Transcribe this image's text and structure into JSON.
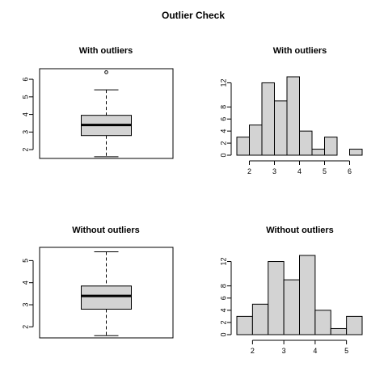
{
  "title": "Outlier Check",
  "chart_data": [
    {
      "type": "box",
      "title": "With outliers",
      "ylim": [
        1.5,
        6.6
      ],
      "yticks": [
        2,
        3,
        4,
        5,
        6
      ],
      "stats": {
        "min": 1.6,
        "q1": 2.8,
        "median": 3.4,
        "q3": 3.95,
        "max": 5.4
      },
      "outliers": [
        6.4
      ]
    },
    {
      "type": "bar",
      "title": "With outliers",
      "bins": [
        [
          1.5,
          2
        ],
        [
          2,
          2.5
        ],
        [
          2.5,
          3
        ],
        [
          3,
          3.5
        ],
        [
          3.5,
          4
        ],
        [
          4,
          4.5
        ],
        [
          4.5,
          5
        ],
        [
          5,
          5.5
        ],
        [
          5.5,
          6
        ],
        [
          6,
          6.5
        ]
      ],
      "values": [
        3,
        5,
        12,
        9,
        13,
        4,
        1,
        3,
        0,
        1
      ],
      "xlim": [
        1.5,
        6.5
      ],
      "xticks": [
        2,
        3,
        4,
        5,
        6
      ],
      "ylim": [
        0,
        13
      ],
      "yticks": [
        0,
        2,
        4,
        6,
        8,
        12
      ]
    },
    {
      "type": "box",
      "title": "Without outliers",
      "ylim": [
        1.5,
        5.6
      ],
      "yticks": [
        2,
        3,
        4,
        5
      ],
      "stats": {
        "min": 1.6,
        "q1": 2.8,
        "median": 3.4,
        "q3": 3.85,
        "max": 5.4
      },
      "outliers": []
    },
    {
      "type": "bar",
      "title": "Without outliers",
      "bins": [
        [
          1.5,
          2
        ],
        [
          2,
          2.5
        ],
        [
          2.5,
          3
        ],
        [
          3,
          3.5
        ],
        [
          3.5,
          4
        ],
        [
          4,
          4.5
        ],
        [
          4.5,
          5
        ],
        [
          5,
          5.5
        ]
      ],
      "values": [
        3,
        5,
        12,
        9,
        13,
        4,
        1,
        3
      ],
      "xlim": [
        1.5,
        5.5
      ],
      "xticks": [
        2,
        3,
        4,
        5
      ],
      "ylim": [
        0,
        13
      ],
      "yticks": [
        0,
        2,
        4,
        6,
        8,
        12
      ]
    }
  ]
}
